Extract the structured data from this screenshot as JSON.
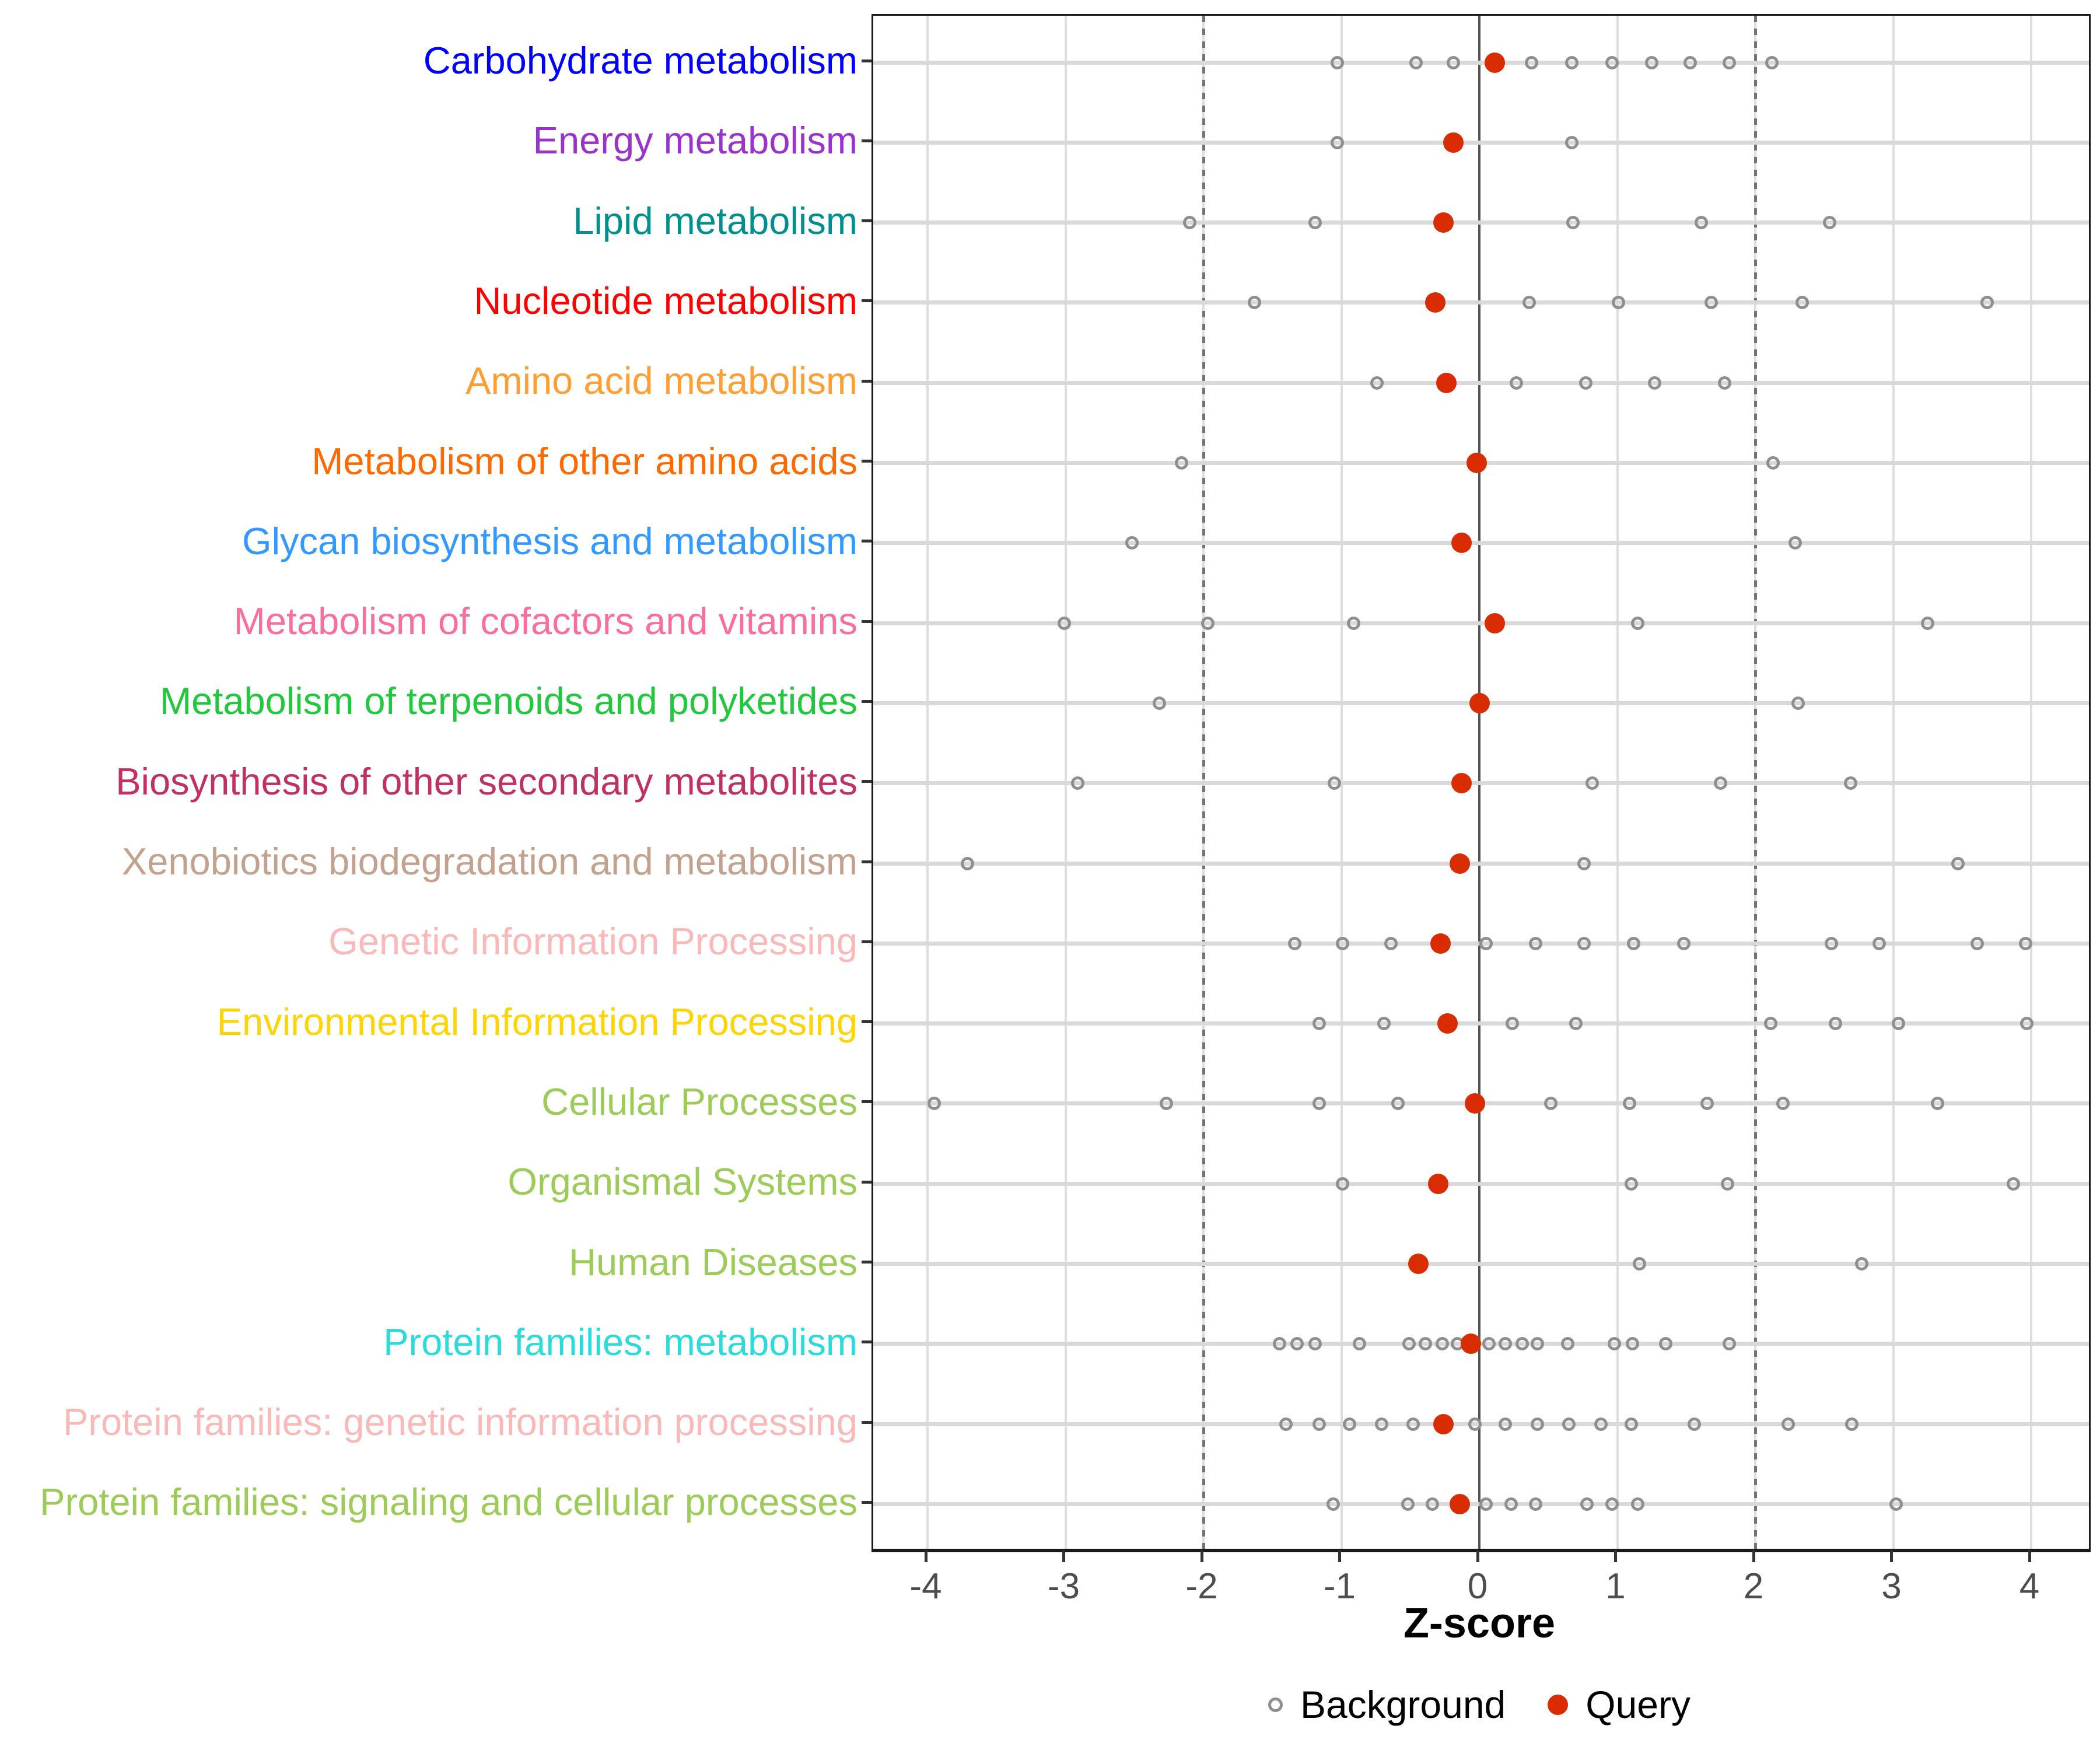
{
  "figure": {
    "xlabel": "Z-score",
    "colors": {
      "query_fill": "#d92c02",
      "background_stroke": "#8f8f8f",
      "zero_line": "#545454",
      "dashed_threshold_line": "#737373",
      "gridline": "#dedede",
      "row_band": "#d9d9d9",
      "axis_tick_text": "#4d4d4d",
      "panel_border": "#1a1a1a"
    }
  },
  "chart_data": {
    "type": "scatter",
    "title": "",
    "xlabel": "Z-score",
    "ylabel": "",
    "xlim": [
      -4.4,
      4.4
    ],
    "xticks": [
      -4,
      -3,
      -2,
      -1,
      0,
      1,
      2,
      3,
      4
    ],
    "grid": "on",
    "zero_line": 0,
    "dashed_lines": [
      -2,
      2
    ],
    "legend_position": "bottom",
    "legend": [
      {
        "label": "Background",
        "marker": "open-circle",
        "color": "#8f8f8f"
      },
      {
        "label": "Query",
        "marker": "filled-circle",
        "color": "#d92c02"
      }
    ],
    "rows": [
      {
        "label": "Carbohydrate metabolism",
        "label_color": "#0000ff",
        "background": [
          -1.03,
          -0.46,
          -0.19,
          0.38,
          0.67,
          0.96,
          1.25,
          1.53,
          1.81,
          2.12
        ],
        "query": 0.11
      },
      {
        "label": "Energy metabolism",
        "label_color": "#9a32cd",
        "background": [
          -1.03,
          0.67
        ],
        "query": -0.19
      },
      {
        "label": "Lipid metabolism",
        "label_color": "#008f8f",
        "background": [
          -2.1,
          -1.19,
          0.68,
          1.61,
          2.54
        ],
        "query": -0.26
      },
      {
        "label": "Nucleotide metabolism",
        "label_color": "#ff0000",
        "background": [
          -1.63,
          0.36,
          1.01,
          1.68,
          2.34,
          3.68
        ],
        "query": -0.32
      },
      {
        "label": "Amino acid metabolism",
        "label_color": "#ff9e33",
        "background": [
          -0.74,
          0.27,
          0.77,
          1.27,
          1.78
        ],
        "query": -0.24
      },
      {
        "label": "Metabolism of other amino acids",
        "label_color": "#ff6a00",
        "background": [
          -2.16,
          2.13
        ],
        "query": -0.02
      },
      {
        "label": "Glycan biosynthesis and metabolism",
        "label_color": "#3399ff",
        "background": [
          -2.52,
          2.29
        ],
        "query": -0.13
      },
      {
        "label": "Metabolism of cofactors and vitamins",
        "label_color": "#fa6e9e",
        "background": [
          -3.01,
          -1.97,
          -0.91,
          1.15,
          3.25
        ],
        "query": 0.11
      },
      {
        "label": "Metabolism of terpenoids and polyketides",
        "label_color": "#1fc83c",
        "background": [
          -2.32,
          2.31
        ],
        "query": 0.0
      },
      {
        "label": "Biosynthesis of other secondary metabolites",
        "label_color": "#c22f63",
        "background": [
          -2.91,
          -1.05,
          0.82,
          1.75,
          2.69
        ],
        "query": -0.13
      },
      {
        "label": "Xenobiotics biodegradation and metabolism",
        "label_color": "#c3a18f",
        "background": [
          -3.71,
          0.76,
          3.47
        ],
        "query": -0.14
      },
      {
        "label": "Genetic Information Processing",
        "label_color": "#fab9b9",
        "background": [
          -1.34,
          -0.99,
          -0.64,
          0.05,
          0.41,
          0.76,
          1.12,
          1.48,
          2.55,
          2.9,
          3.61,
          3.96
        ],
        "query": -0.28
      },
      {
        "label": "Environmental Information Processing",
        "label_color": "#ffd404",
        "background": [
          -1.16,
          -0.69,
          0.24,
          0.7,
          2.11,
          2.58,
          3.04,
          3.97
        ],
        "query": -0.23
      },
      {
        "label": "Cellular Processes",
        "label_color": "#9ccb58",
        "background": [
          -3.95,
          -2.27,
          -1.16,
          -0.59,
          0.52,
          1.09,
          1.65,
          2.2,
          3.32
        ],
        "query": -0.03
      },
      {
        "label": "Organismal Systems",
        "label_color": "#9ccb58",
        "background": [
          -0.99,
          1.1,
          1.8,
          3.87
        ],
        "query": -0.3
      },
      {
        "label": "Human Diseases",
        "label_color": "#9ccb58",
        "background": [
          1.16,
          2.77
        ],
        "query": -0.44
      },
      {
        "label": "Protein families: metabolism",
        "label_color": "#2bdbdb",
        "background": [
          -1.45,
          -1.32,
          -1.19,
          -0.87,
          -0.51,
          -0.39,
          -0.27,
          -0.16,
          0.07,
          0.19,
          0.31,
          0.42,
          0.64,
          0.98,
          1.11,
          1.35,
          1.81
        ],
        "query": -0.06
      },
      {
        "label": "Protein families: genetic information processing",
        "label_color": "#fab9b9",
        "background": [
          -1.4,
          -1.16,
          -0.94,
          -0.71,
          -0.48,
          -0.03,
          0.19,
          0.42,
          0.65,
          0.88,
          1.1,
          1.56,
          2.24,
          2.7
        ],
        "query": -0.26
      },
      {
        "label": "Protein families: signaling and cellular processes",
        "label_color": "#9ccb58",
        "background": [
          -1.06,
          -0.52,
          -0.34,
          0.05,
          0.23,
          0.41,
          0.78,
          0.96,
          1.15,
          3.02
        ],
        "query": -0.14
      }
    ]
  }
}
